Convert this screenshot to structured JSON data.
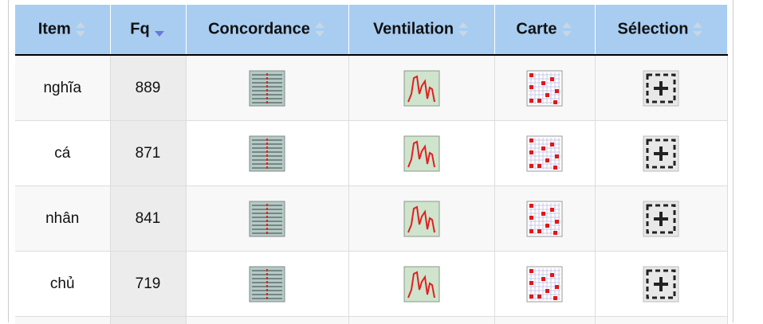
{
  "table": {
    "headers": [
      "Item",
      "Fq",
      "Concordance",
      "Ventilation",
      "Carte",
      "Sélection"
    ],
    "rows": [
      [
        "nghĩa",
        889
      ],
      [
        "cá",
        871
      ],
      [
        "nhân",
        841
      ],
      [
        "chủ",
        719
      ]
    ]
  }
}
